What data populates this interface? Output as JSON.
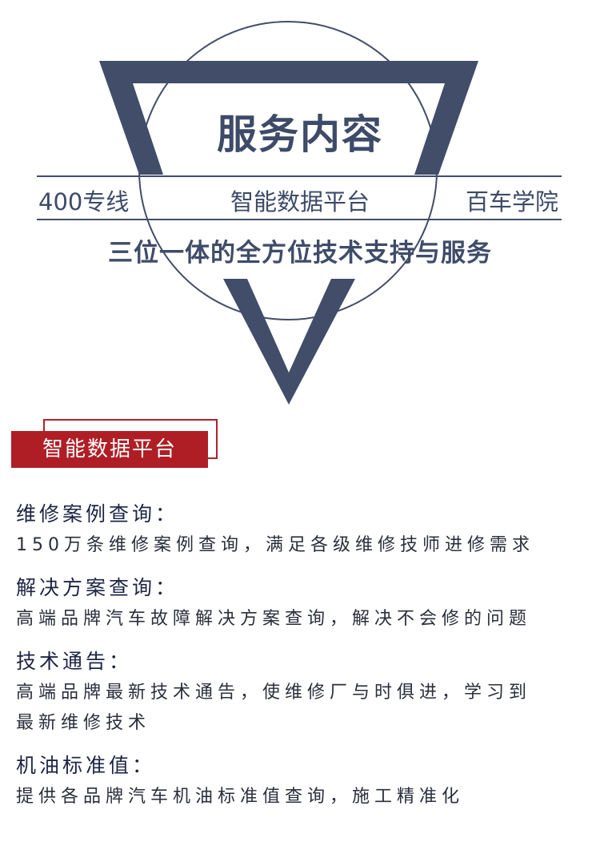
{
  "hero": {
    "title": "服务内容",
    "left_label": "400专线",
    "center_label": "智能数据平台",
    "right_label": "百车学院",
    "tagline": "三位一体的全方位技术支持与服务",
    "shape_color": "#414d69"
  },
  "section": {
    "badge_label": "智能数据平台",
    "accent_color": "#b01e25"
  },
  "items": [
    {
      "title": "维修案例查询：",
      "lines": [
        "150万条维修案例查询，满足各级维修技师进修需求"
      ]
    },
    {
      "title": "解决方案查询：",
      "lines": [
        "高端品牌汽车故障解决方案查询，解决不会修的问题"
      ]
    },
    {
      "title": "技术通告：",
      "lines": [
        "高端品牌最新技术通告，使维修厂与时俱进，学习到",
        "最新维修技术"
      ]
    },
    {
      "title": "机油标准值：",
      "lines": [
        "提供各品牌汽车机油标准值查询，施工精准化"
      ]
    }
  ]
}
